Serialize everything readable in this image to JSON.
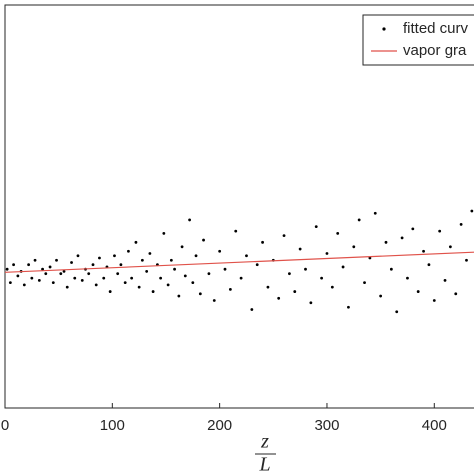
{
  "chart_data": {
    "type": "scatter",
    "xlabel_top": "z",
    "xlabel_bottom": "L",
    "xlim": [
      0,
      437
    ],
    "ylim": [
      0,
      9
    ],
    "xticks": [
      0,
      100,
      200,
      300,
      400
    ],
    "legend": "upper right",
    "series": [
      {
        "name": "fitted curv",
        "kind": "points",
        "color": "#000000",
        "x": [
          2,
          5,
          8,
          12,
          15,
          18,
          22,
          25,
          28,
          32,
          35,
          38,
          42,
          45,
          48,
          52,
          55,
          58,
          62,
          65,
          68,
          72,
          75,
          78,
          82,
          85,
          88,
          92,
          95,
          98,
          102,
          105,
          108,
          112,
          115,
          118,
          122,
          125,
          128,
          132,
          135,
          138,
          142,
          145,
          148,
          152,
          155,
          158,
          162,
          165,
          168,
          172,
          175,
          178,
          182,
          185,
          190,
          195,
          200,
          205,
          210,
          215,
          220,
          225,
          230,
          235,
          240,
          245,
          250,
          255,
          260,
          265,
          270,
          275,
          280,
          285,
          290,
          295,
          300,
          305,
          310,
          315,
          320,
          325,
          330,
          335,
          340,
          345,
          350,
          355,
          360,
          365,
          370,
          375,
          380,
          385,
          390,
          395,
          400,
          405,
          410,
          415,
          420,
          425,
          430,
          435
        ],
        "values": [
          3.1,
          2.8,
          3.2,
          2.95,
          3.05,
          2.75,
          3.2,
          2.9,
          3.3,
          2.85,
          3.1,
          3.0,
          3.15,
          2.8,
          3.3,
          3.0,
          3.05,
          2.7,
          3.25,
          2.9,
          3.4,
          2.85,
          3.1,
          3.0,
          3.2,
          2.75,
          3.35,
          2.9,
          3.15,
          2.6,
          3.4,
          3.0,
          3.2,
          2.8,
          3.5,
          2.9,
          3.7,
          2.7,
          3.3,
          3.05,
          3.45,
          2.6,
          3.2,
          2.9,
          3.9,
          2.75,
          3.3,
          3.1,
          2.5,
          3.6,
          2.95,
          4.2,
          2.8,
          3.4,
          2.55,
          3.75,
          3.0,
          2.4,
          3.5,
          3.1,
          2.65,
          3.95,
          2.9,
          3.4,
          2.2,
          3.2,
          3.7,
          2.7,
          3.3,
          2.45,
          3.85,
          3.0,
          2.6,
          3.55,
          3.1,
          2.35,
          4.05,
          2.9,
          3.45,
          2.7,
          3.9,
          3.15,
          2.25,
          3.6,
          4.2,
          2.8,
          3.35,
          4.35,
          2.5,
          3.7,
          3.1,
          2.15,
          3.8,
          2.9,
          4.0,
          2.6,
          3.5,
          3.2,
          2.4,
          3.95,
          2.85,
          3.6,
          2.55,
          4.1,
          3.3,
          4.4
        ]
      },
      {
        "name": "vapor gra",
        "kind": "line",
        "color": "#e0524a",
        "x": [
          0,
          437
        ],
        "values": [
          3.03,
          3.48
        ]
      }
    ]
  }
}
